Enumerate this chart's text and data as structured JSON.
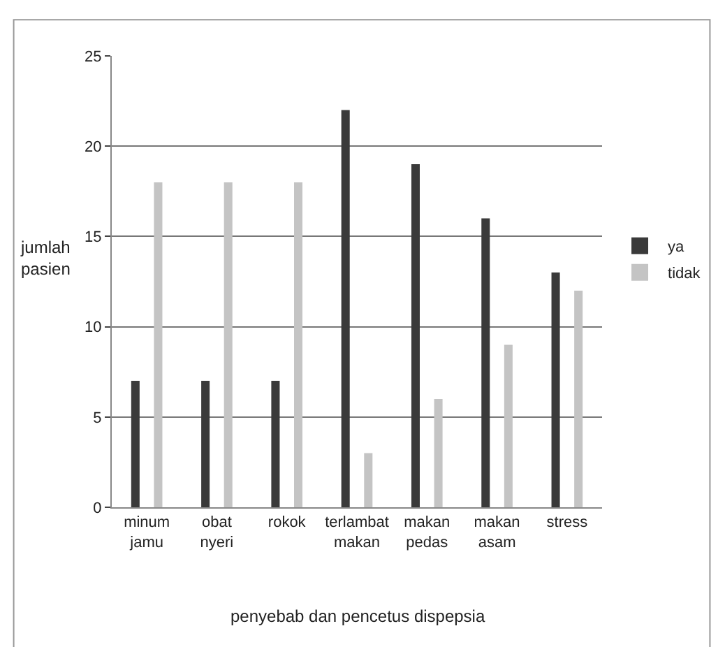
{
  "chart_data": {
    "type": "bar",
    "xlabel": "penyebab dan pencetus dispepsia",
    "ylabel": "jumlah pasien",
    "categories": [
      "minum jamu",
      "obat nyeri",
      "rokok",
      "terlambat makan",
      "makan pedas",
      "makan asam",
      "stress"
    ],
    "series": [
      {
        "name": "ya",
        "color": "#3a3a3a",
        "values": [
          7,
          7,
          7,
          22,
          19,
          16,
          13
        ]
      },
      {
        "name": "tidak",
        "color": "#c4c4c4",
        "values": [
          18,
          18,
          18,
          3,
          6,
          9,
          12
        ]
      }
    ],
    "ylim": [
      0,
      25
    ],
    "yticks": [
      0,
      5,
      10,
      15,
      20,
      25
    ],
    "grid": "y",
    "legend": "right"
  }
}
